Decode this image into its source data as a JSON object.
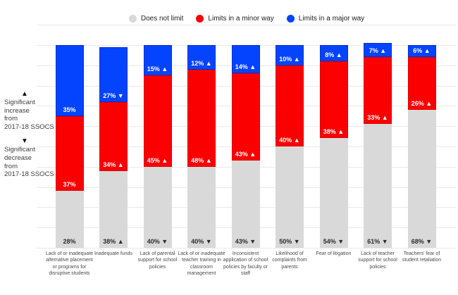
{
  "legend": {
    "items": [
      {
        "label": "Does not limit",
        "color": "#d9d9d9"
      },
      {
        "label": "Limits in a minor way",
        "color": "#fa0000"
      },
      {
        "label": "Limits in a major way",
        "color": "#0444ff"
      }
    ]
  },
  "annotations": {
    "increase": {
      "symbol": "▲",
      "lines": [
        "Significant",
        "increase",
        "from",
        "2017-18 SSOCS"
      ]
    },
    "decrease": {
      "symbol": "▼",
      "lines": [
        "Significant",
        "decrease",
        "from",
        "2017-18 SSOCS"
      ]
    }
  },
  "chart_data": {
    "type": "bar",
    "stacked": true,
    "grid": true,
    "legend_position": "top",
    "ylim": [
      0,
      110
    ],
    "categories": [
      "Lack of or inadequate alternative placement or programs for disruptive students",
      "Inadequate funds",
      "Lack of parental support for school policies",
      "Lack of or inadequate teacher training in classroom management",
      "Inconsistent application of school policies by faculty or staff",
      "Likelihood of complaints from parents",
      "Fear of litigation",
      "Lack of teacher support for school policies",
      "Teachers' fear of student retaliation"
    ],
    "series": [
      {
        "name": "Does not limit",
        "color": "#d9d9d9",
        "border": "",
        "label_color": "#2b2b2b",
        "values": [
          28,
          38,
          40,
          40,
          43,
          50,
          54,
          61,
          68
        ],
        "labels": [
          "28%",
          "38% ▲",
          "40% ▼",
          "40% ▼",
          "43% ▼",
          "50% ▼",
          "54% ▼",
          "61% ▼",
          "68% ▼"
        ]
      },
      {
        "name": "Limits in a minor way",
        "color": "#fa0000",
        "border": "#e00000",
        "label_color": "#ffffff",
        "values": [
          37,
          34,
          45,
          48,
          43,
          40,
          38,
          33,
          26
        ],
        "labels": [
          "37%",
          "34% ▲",
          "45% ▲",
          "48% ▲",
          "43% ▲",
          "40% ▲",
          "38% ▲",
          "33% ▲",
          "26% ▲"
        ]
      },
      {
        "name": "Limits in a major way",
        "color": "#0444ff",
        "border": "#0a2ed2",
        "label_color": "#ffffff",
        "values": [
          35,
          27,
          15,
          12,
          14,
          10,
          8,
          7,
          6
        ],
        "labels": [
          "35%",
          "27% ▼",
          "15% ▲",
          "12% ▲",
          "14% ▲",
          "10% ▲",
          "8% ▲",
          "7% ▲",
          "6% ▲"
        ]
      }
    ]
  }
}
